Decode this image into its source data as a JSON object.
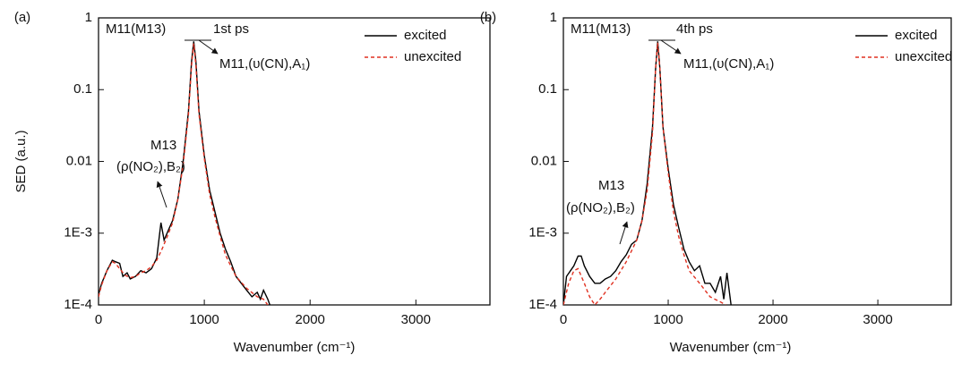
{
  "chart_data": [
    {
      "type": "line",
      "panel_label": "(a)",
      "y_label": "SED (a.u.)",
      "x_label": "Wavenumber (cm⁻¹)",
      "annotations": [
        "M11(M13)",
        "1st ps",
        "M11,(υ(CN),A₁)",
        "M13",
        "(ρ(NO₂),B₂)"
      ],
      "log_y": true,
      "legend": "upper right",
      "xlim": [
        0,
        3700
      ],
      "xticks": [
        0,
        1000,
        2000,
        3000
      ],
      "ylim": [
        0.0001,
        1
      ],
      "yticks": [
        {
          "value": 0.0001,
          "label": "1E-4"
        },
        {
          "value": 0.001,
          "label": "1E-3"
        },
        0.01,
        0.1,
        1
      ],
      "series": [
        {
          "name": "excited",
          "color": "#000000",
          "dash": false,
          "x": [
            0,
            30,
            80,
            130,
            160,
            200,
            230,
            270,
            300,
            350,
            400,
            450,
            500,
            550,
            590,
            620,
            660,
            700,
            750,
            800,
            850,
            880,
            900,
            920,
            950,
            1000,
            1050,
            1100,
            1150,
            1200,
            1250,
            1300,
            1350,
            1400,
            1450,
            1500,
            1530,
            1560,
            1600,
            1620
          ],
          "values": [
            0.00014,
            0.0002,
            0.0003,
            0.00042,
            0.0004,
            0.00038,
            0.00025,
            0.00028,
            0.00023,
            0.00025,
            0.0003,
            0.00028,
            0.00032,
            0.00045,
            0.0014,
            0.0008,
            0.0011,
            0.0015,
            0.003,
            0.01,
            0.05,
            0.25,
            0.47,
            0.25,
            0.05,
            0.012,
            0.004,
            0.002,
            0.001,
            0.0006,
            0.0004,
            0.00025,
            0.0002,
            0.00016,
            0.00013,
            0.00015,
            0.00012,
            0.00016,
            0.00012,
            0.0001
          ]
        },
        {
          "name": "unexcited",
          "color": "#e03020",
          "dash": true,
          "x": [
            0,
            30,
            80,
            130,
            160,
            200,
            250,
            300,
            350,
            400,
            450,
            500,
            550,
            600,
            650,
            700,
            750,
            800,
            850,
            880,
            900,
            920,
            950,
            1000,
            1050,
            1100,
            1150,
            1200,
            1250,
            1300,
            1400,
            1500,
            1560,
            1600
          ],
          "values": [
            0.00013,
            0.00019,
            0.0003,
            0.0004,
            0.00038,
            0.00032,
            0.00026,
            0.00024,
            0.00025,
            0.00028,
            0.0003,
            0.00034,
            0.00042,
            0.0006,
            0.0009,
            0.0014,
            0.003,
            0.009,
            0.045,
            0.22,
            0.44,
            0.22,
            0.045,
            0.011,
            0.0035,
            0.0017,
            0.0009,
            0.0005,
            0.00035,
            0.00025,
            0.00017,
            0.00013,
            0.00012,
            0.0001
          ]
        }
      ]
    },
    {
      "type": "line",
      "panel_label": "(b)",
      "x_label": "Wavenumber (cm⁻¹)",
      "annotations": [
        "M11(M13)",
        "4th ps",
        "M11,(υ(CN),A₁)",
        "M13",
        "(ρ(NO₂),B₂)"
      ],
      "log_y": true,
      "legend": "upper right",
      "xlim": [
        0,
        3700
      ],
      "xticks": [
        0,
        1000,
        2000,
        3000
      ],
      "ylim": [
        0.0001,
        1
      ],
      "yticks": [
        {
          "value": 0.0001,
          "label": "1E-4"
        },
        {
          "value": 0.001,
          "label": "1E-3"
        },
        0.01,
        0.1,
        1
      ],
      "series": [
        {
          "name": "excited",
          "color": "#000000",
          "dash": false,
          "x": [
            0,
            30,
            100,
            140,
            170,
            200,
            250,
            300,
            350,
            400,
            450,
            500,
            550,
            600,
            650,
            700,
            750,
            800,
            850,
            880,
            900,
            920,
            950,
            1000,
            1050,
            1100,
            1150,
            1200,
            1250,
            1300,
            1350,
            1400,
            1450,
            1500,
            1530,
            1560,
            1600
          ],
          "values": [
            0.0001,
            0.00025,
            0.00035,
            0.00048,
            0.00048,
            0.00035,
            0.00025,
            0.0002,
            0.0002,
            0.00023,
            0.00025,
            0.0003,
            0.0004,
            0.0005,
            0.0007,
            0.0008,
            0.0015,
            0.005,
            0.03,
            0.2,
            0.47,
            0.2,
            0.03,
            0.008,
            0.0025,
            0.0012,
            0.0006,
            0.0004,
            0.0003,
            0.00035,
            0.0002,
            0.0002,
            0.00015,
            0.00025,
            0.00012,
            0.00028,
            0.0001
          ]
        },
        {
          "name": "unexcited",
          "color": "#e03020",
          "dash": true,
          "x": [
            0,
            50,
            100,
            140,
            200,
            250,
            300,
            350,
            400,
            500,
            600,
            700,
            750,
            800,
            850,
            880,
            900,
            920,
            950,
            1000,
            1050,
            1100,
            1150,
            1200,
            1300,
            1400,
            1500,
            1550
          ],
          "values": [
            0.0001,
            0.0002,
            0.0003,
            0.00032,
            0.0002,
            0.00013,
            0.0001,
            0.00012,
            0.00015,
            0.00023,
            0.0004,
            0.0008,
            0.0015,
            0.004,
            0.025,
            0.2,
            0.45,
            0.2,
            0.03,
            0.007,
            0.002,
            0.0009,
            0.0005,
            0.0003,
            0.0002,
            0.00013,
            0.00011,
            0.0001
          ]
        }
      ]
    }
  ]
}
